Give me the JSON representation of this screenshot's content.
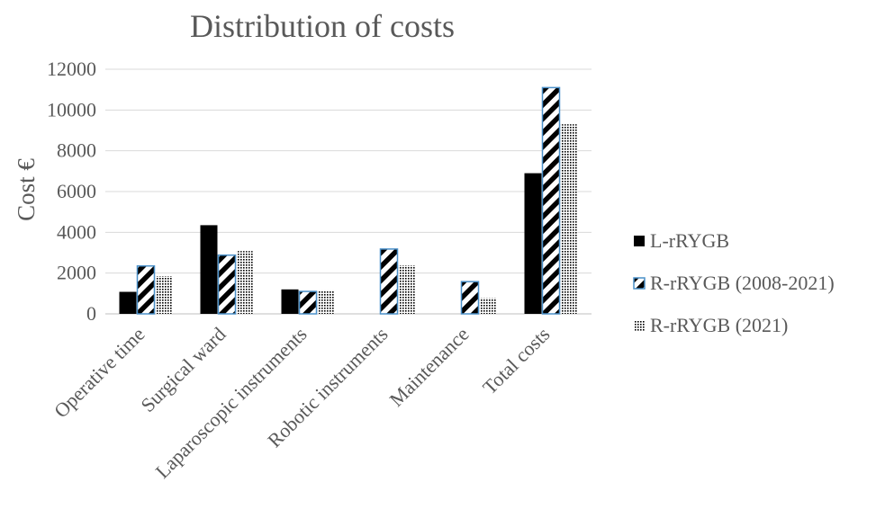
{
  "chart_data": {
    "type": "bar",
    "title": "Distribution of costs",
    "xlabel": "",
    "ylabel": "Cost €",
    "ylim": [
      0,
      12000
    ],
    "yticks": [
      0,
      2000,
      4000,
      6000,
      8000,
      10000,
      12000
    ],
    "grid": true,
    "legend_position": "right",
    "categories": [
      "Operative time",
      "Surgical ward",
      "Laparoscopic instruments",
      "Robotic instruments",
      "Maintenance",
      "Total costs"
    ],
    "series": [
      {
        "name": "L-rRYGB",
        "values": [
          1080,
          4350,
          1200,
          0,
          0,
          6900
        ],
        "pattern": "solid",
        "color": "#000000"
      },
      {
        "name": "R-rRYGB (2008-2021)",
        "values": [
          2350,
          2880,
          1100,
          3180,
          1580,
          11100
        ],
        "pattern": "diagonal-stripes",
        "color": "#000000",
        "border": "#4a90c9"
      },
      {
        "name": "R-rRYGB (2021)",
        "values": [
          1850,
          3080,
          1150,
          2380,
          780,
          9300
        ],
        "pattern": "dots",
        "color": "#000000"
      }
    ]
  }
}
